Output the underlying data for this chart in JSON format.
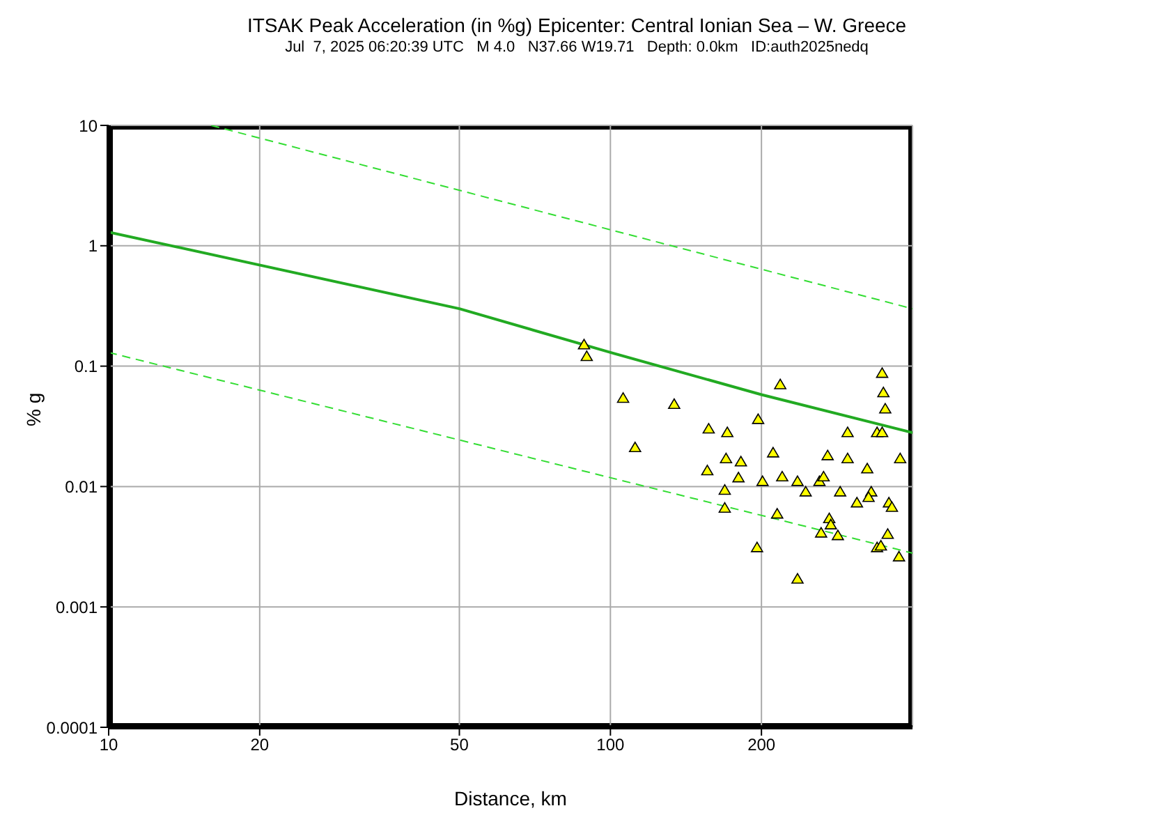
{
  "chart_data": {
    "type": "scatter",
    "title": "ITSAK Peak Acceleration (in %g) Epicenter: Central Ionian Sea – W. Greece",
    "subtitle": "Jul  7, 2025 06:20:39 UTC   M 4.0   N37.66 W19.71   Depth: 0.0km   ID:auth2025nedq",
    "xlabel": "Distance, km",
    "ylabel": "% g",
    "log": "xy",
    "xlim": [
      10,
      400
    ],
    "ylim": [
      0.0001,
      10
    ],
    "xticks": [
      10,
      20,
      50,
      100,
      200
    ],
    "yticks": [
      0.0001,
      0.001,
      0.01,
      0.1,
      1,
      10
    ],
    "grid": true,
    "series": [
      {
        "type": "line",
        "line_style": "dashed",
        "color": "#33dd33",
        "x": [
          16,
          400
        ],
        "values": [
          10,
          0.3
        ]
      },
      {
        "type": "line",
        "line_style": "solid",
        "color": "#22aa22",
        "x": [
          10,
          50,
          100,
          200,
          400
        ],
        "values": [
          1.3,
          0.3,
          0.13,
          0.058,
          0.028
        ]
      },
      {
        "type": "line",
        "line_style": "dashed",
        "color": "#33dd33",
        "x": [
          10,
          400
        ],
        "values": [
          0.13,
          0.0028
        ]
      },
      {
        "marker": "triangle",
        "color": "#ffff00",
        "x": [
          88.6,
          89.7,
          106,
          134,
          157,
          171,
          112,
          170,
          182,
          156,
          180,
          169,
          169,
          218,
          348,
          350,
          353,
          197,
          297,
          340,
          348,
          211,
          271,
          297,
          378,
          325,
          201,
          220,
          236,
          261,
          266,
          245,
          287,
          331,
          310,
          327,
          359,
          364,
          215,
          273,
          275,
          263,
          284,
          357,
          340,
          346,
          196,
          376,
          236
        ],
        "values": [
          0.15,
          0.12,
          0.054,
          0.048,
          0.03,
          0.028,
          0.021,
          0.017,
          0.016,
          0.0135,
          0.0118,
          0.0093,
          0.0066,
          0.07,
          0.087,
          0.06,
          0.044,
          0.036,
          0.028,
          0.028,
          0.028,
          0.019,
          0.018,
          0.017,
          0.017,
          0.014,
          0.011,
          0.012,
          0.011,
          0.011,
          0.012,
          0.009,
          0.009,
          0.009,
          0.0073,
          0.0081,
          0.0073,
          0.0067,
          0.0059,
          0.0054,
          0.0048,
          0.0041,
          0.0039,
          0.004,
          0.0031,
          0.0032,
          0.0031,
          0.0026,
          0.0017
        ]
      }
    ]
  }
}
